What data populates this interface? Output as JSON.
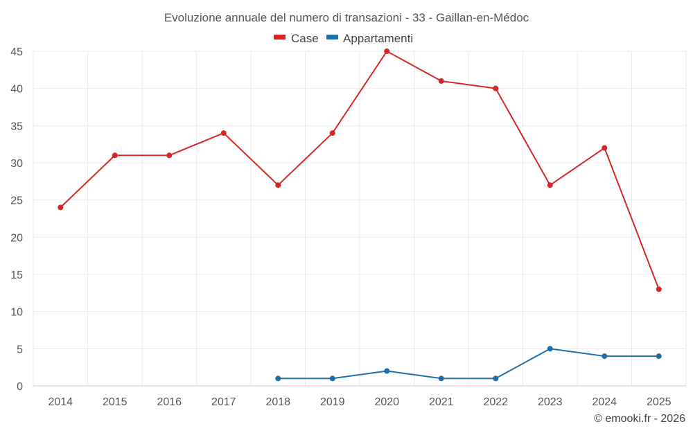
{
  "chart_data": {
    "type": "line",
    "title": "Evoluzione annuale del numero di transazioni - 33 - Gaillan-en-Médoc",
    "categories": [
      "2014",
      "2015",
      "2016",
      "2017",
      "2018",
      "2019",
      "2020",
      "2021",
      "2022",
      "2023",
      "2024",
      "2025"
    ],
    "series": [
      {
        "name": "Case",
        "color": "#d62728",
        "values": [
          24,
          31,
          31,
          34,
          27,
          34,
          45,
          41,
          40,
          27,
          32,
          13
        ]
      },
      {
        "name": "Appartamenti",
        "color": "#1f6fa8",
        "values": [
          null,
          null,
          null,
          null,
          1,
          1,
          2,
          1,
          1,
          5,
          4,
          4
        ]
      }
    ],
    "ylim": [
      0,
      45
    ],
    "yticks": [
      "0",
      "5",
      "10",
      "15",
      "20",
      "25",
      "30",
      "35",
      "40",
      "45"
    ],
    "legend_position": "top-center",
    "grid": true,
    "credit": "© emooki.fr - 2026"
  }
}
